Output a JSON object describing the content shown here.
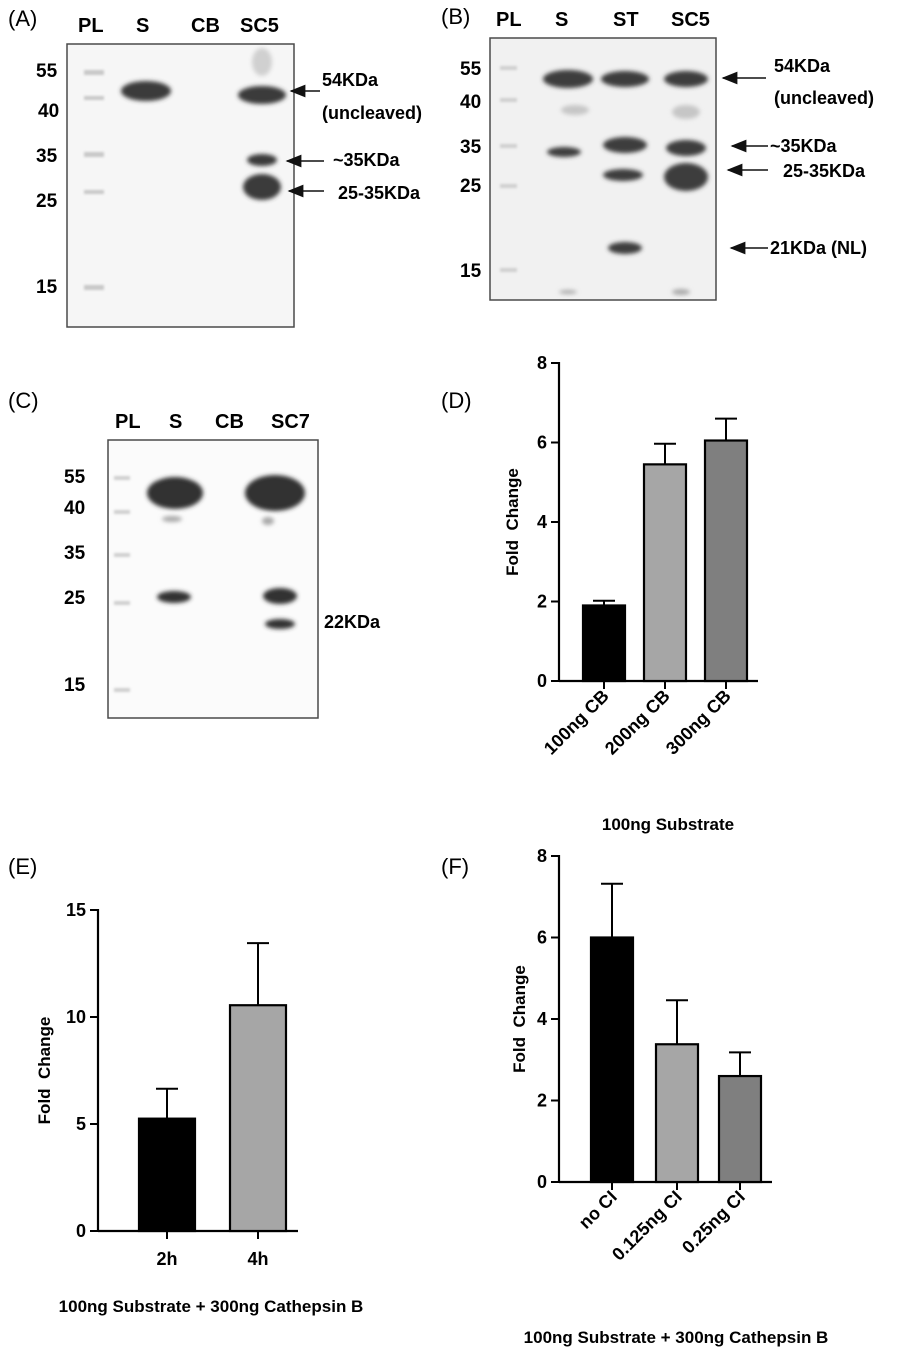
{
  "panels": {
    "A": {
      "label": "(A)",
      "lanes": [
        "PL",
        "S",
        "CB",
        "SC5"
      ],
      "markers": [
        "55",
        "40",
        "35",
        "25",
        "15"
      ],
      "annotations": [
        "54KDa",
        "(uncleaved)",
        "~35KDa",
        "25-35KDa"
      ]
    },
    "B": {
      "label": "(B)",
      "lanes": [
        "PL",
        "S",
        "ST",
        "SC5"
      ],
      "markers": [
        "55",
        "40",
        "35",
        "25",
        "15"
      ],
      "annotations": [
        "54KDa",
        "(uncleaved)",
        "~35KDa",
        "25-35KDa",
        "21KDa (NL)"
      ]
    },
    "C": {
      "label": "(C)",
      "lanes": [
        "PL",
        "S",
        "CB",
        "SC7"
      ],
      "markers": [
        "55",
        "40",
        "35",
        "25",
        "15"
      ],
      "annotations": [
        "22KDa"
      ]
    },
    "D": {
      "label": "(D)"
    },
    "E": {
      "label": "(E)"
    },
    "F": {
      "label": "(F)"
    }
  },
  "chart_data": [
    {
      "panel": "D",
      "type": "bar",
      "categories": [
        "100ng CB",
        "200ng CB",
        "300ng CB"
      ],
      "values": [
        1.9,
        5.45,
        6.05
      ],
      "errors": [
        0.12,
        0.52,
        0.55
      ],
      "bar_colors": [
        "#000000",
        "#a6a6a6",
        "#7f7f7f"
      ],
      "ylabel": "Fold  Change",
      "xlabel": "100ng Substrate",
      "ylim": [
        0,
        8
      ],
      "yticks": [
        0,
        2,
        4,
        6,
        8
      ]
    },
    {
      "panel": "E",
      "type": "bar",
      "categories": [
        "2h",
        "4h"
      ],
      "values": [
        5.25,
        10.55
      ],
      "errors": [
        1.4,
        2.9
      ],
      "bar_colors": [
        "#000000",
        "#a6a6a6"
      ],
      "ylabel": "Fold  Change",
      "xlabel": "100ng Substrate + 300ng Cathepsin B",
      "ylim": [
        0,
        15
      ],
      "yticks": [
        0,
        5,
        10,
        15
      ]
    },
    {
      "panel": "F",
      "type": "bar",
      "categories": [
        "no CI",
        "0.125ng CI",
        "0.25ng CI"
      ],
      "values": [
        6.0,
        3.38,
        2.6
      ],
      "errors": [
        1.32,
        1.08,
        0.58
      ],
      "bar_colors": [
        "#000000",
        "#a6a6a6",
        "#7f7f7f"
      ],
      "ylabel": "Fold  Change",
      "xlabel": "100ng Substrate + 300ng Cathepsin B",
      "ylim": [
        0,
        8
      ],
      "yticks": [
        0,
        2,
        4,
        6,
        8
      ]
    }
  ]
}
